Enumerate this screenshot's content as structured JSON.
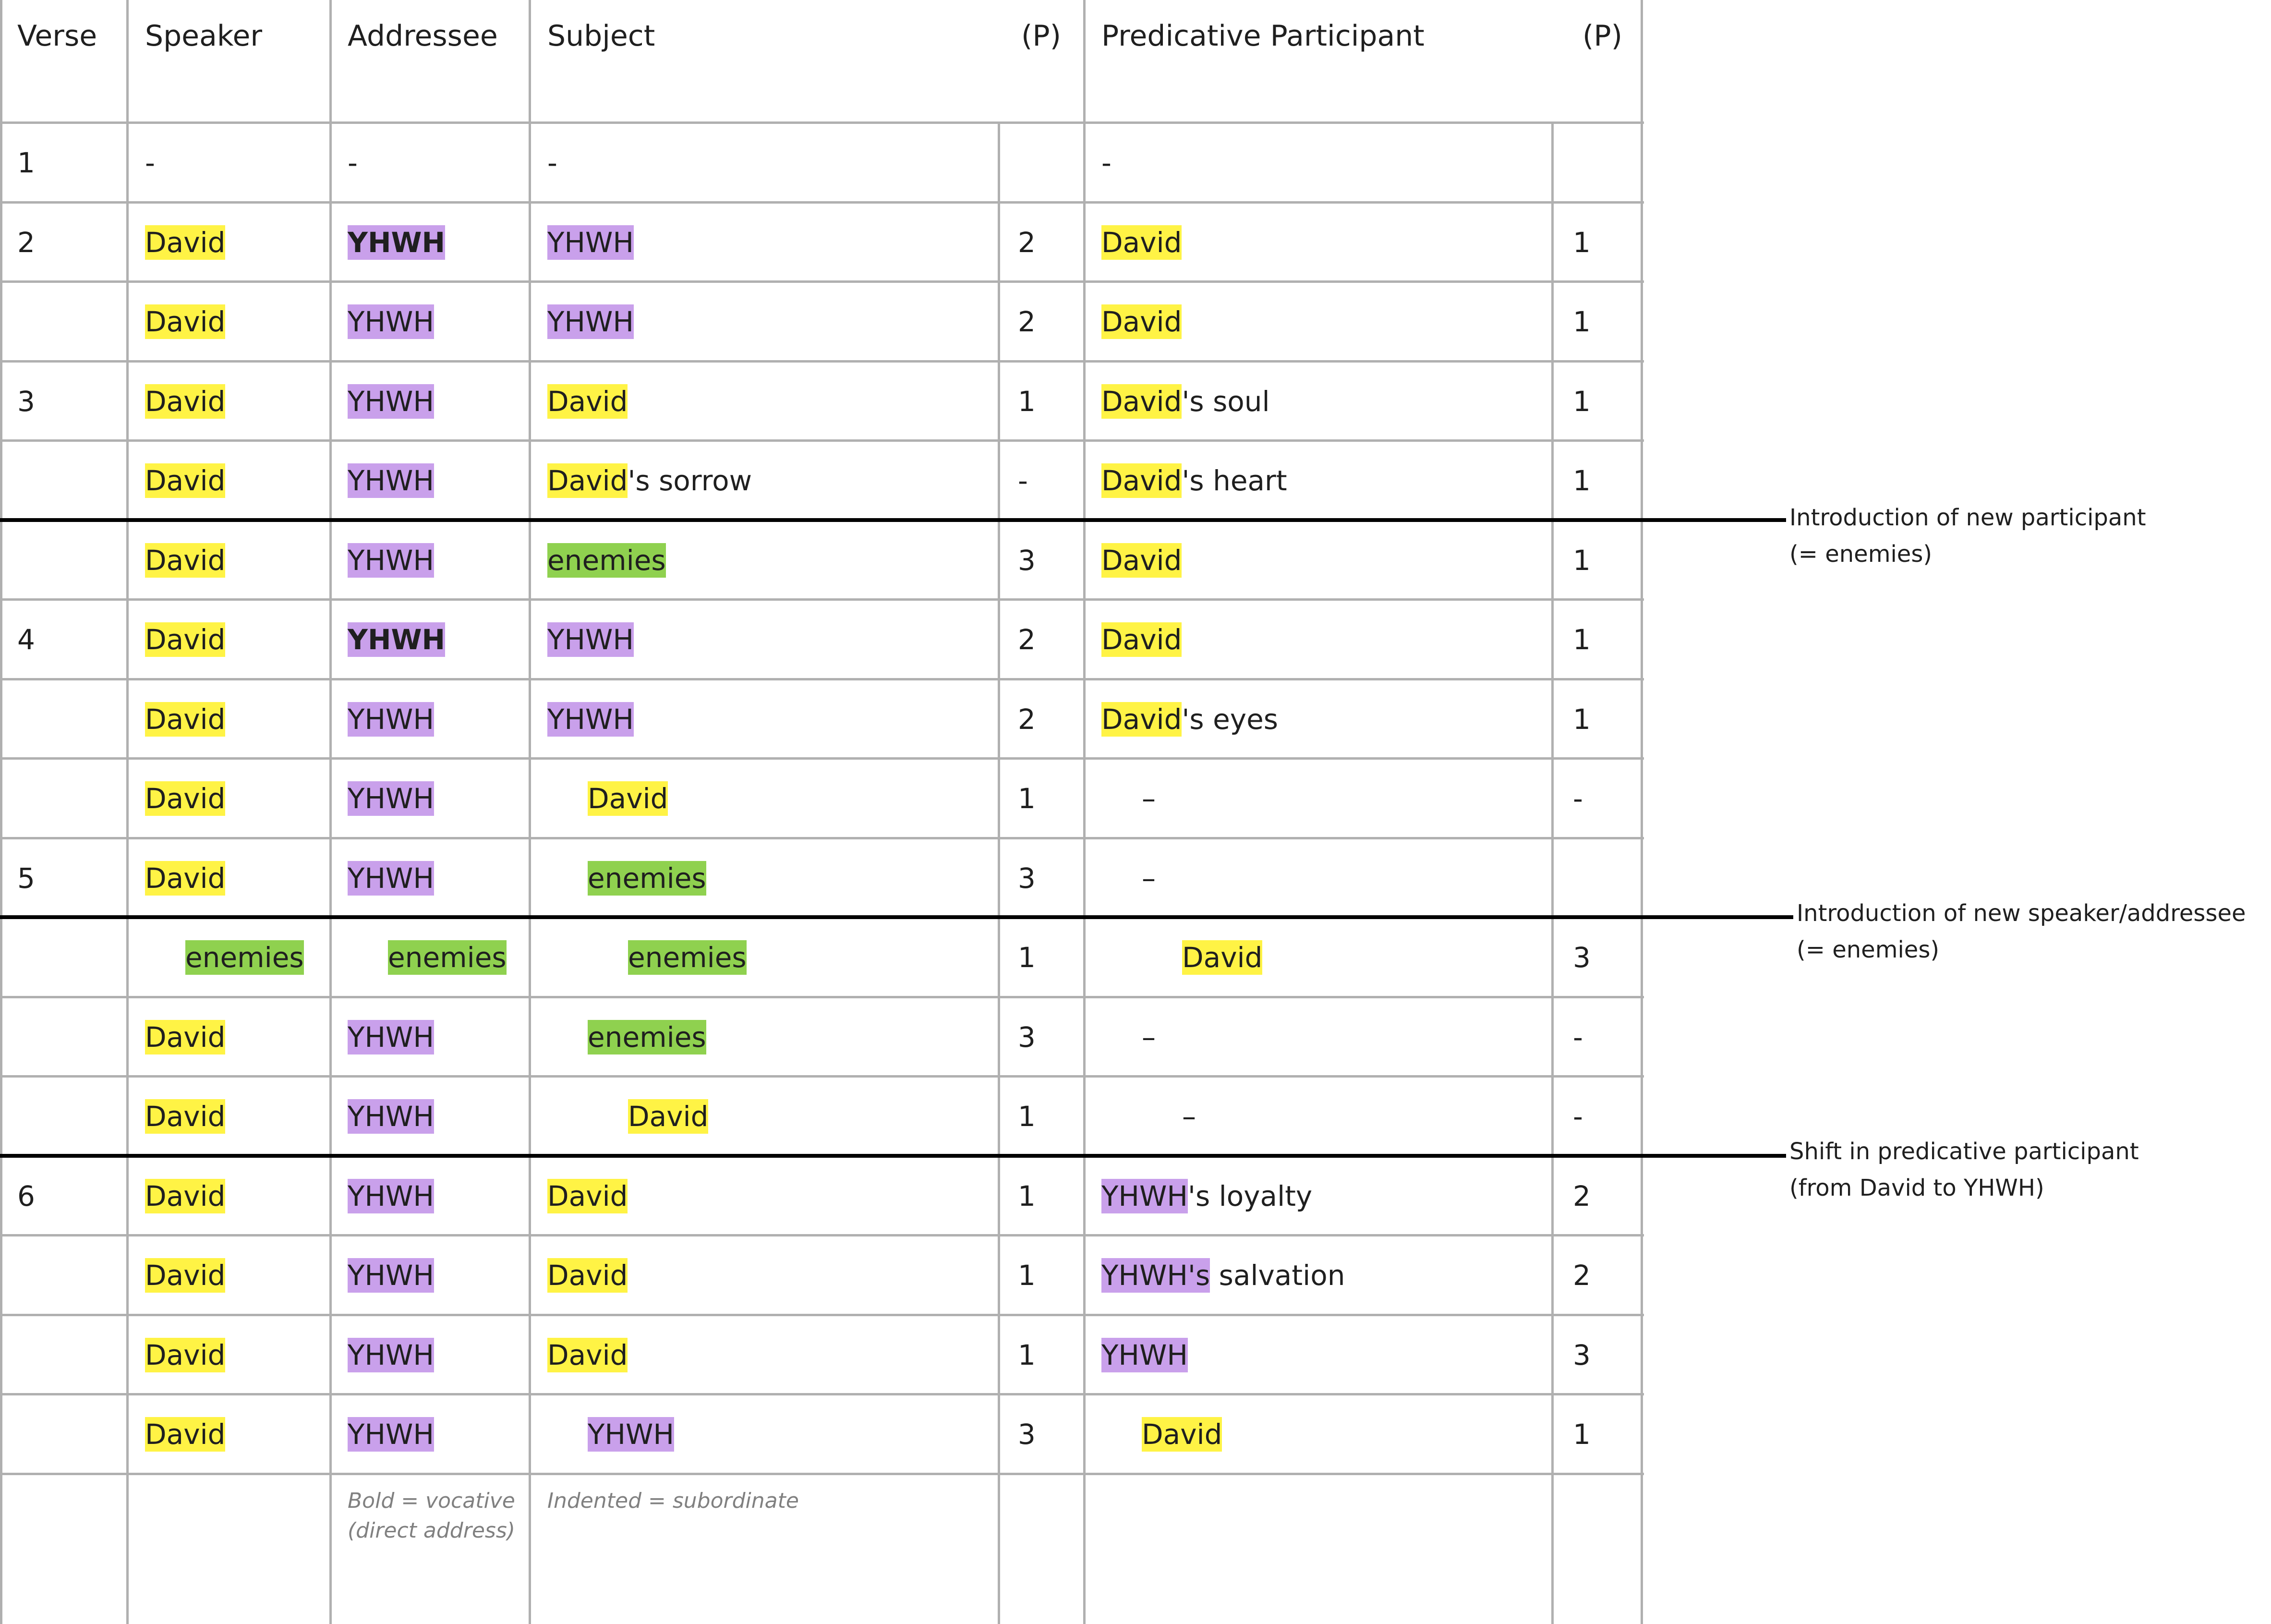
{
  "colors": {
    "david": "#fff345",
    "yhwh": "#c9a0eb",
    "enemies": "#8fd14f",
    "grid": "#b0b0b0",
    "separator": "#000000",
    "note_text": "#808080"
  },
  "headers": {
    "verse": "Verse",
    "speaker": "Speaker",
    "addressee": "Addressee",
    "subject": "Subject",
    "subject_p": "(P)",
    "predicative": "Predicative Participant",
    "predicative_p": "(P)"
  },
  "rows": [
    {
      "verse": "1",
      "speaker": {
        "text": "-"
      },
      "addressee": {
        "text": "-"
      },
      "subject": {
        "text": "-"
      },
      "subject_p": "",
      "pred": {
        "text": "-"
      },
      "pred_p": ""
    },
    {
      "verse": "2",
      "speaker": {
        "text": "David",
        "hl": "david"
      },
      "addressee": {
        "text": "YHWH",
        "hl": "yhwh",
        "bold": true
      },
      "subject": {
        "text": "YHWH",
        "hl": "yhwh"
      },
      "subject_p": "2",
      "pred": {
        "text": "David",
        "hl": "david"
      },
      "pred_p": "1"
    },
    {
      "verse": "",
      "speaker": {
        "text": "David",
        "hl": "david"
      },
      "addressee": {
        "text": "YHWH",
        "hl": "yhwh"
      },
      "subject": {
        "text": "YHWH",
        "hl": "yhwh"
      },
      "subject_p": "2",
      "pred": {
        "text": "David",
        "hl": "david"
      },
      "pred_p": "1"
    },
    {
      "verse": "3",
      "speaker": {
        "text": "David",
        "hl": "david"
      },
      "addressee": {
        "text": "YHWH",
        "hl": "yhwh"
      },
      "subject": {
        "text": "David",
        "hl": "david"
      },
      "subject_p": "1",
      "pred": {
        "text": "David",
        "hl": "david",
        "rest": "'s soul"
      },
      "pred_p": "1"
    },
    {
      "verse": "",
      "speaker": {
        "text": "David",
        "hl": "david"
      },
      "addressee": {
        "text": "YHWH",
        "hl": "yhwh"
      },
      "subject": {
        "text": "David",
        "hl": "david",
        "rest": "'s sorrow"
      },
      "subject_p": "-",
      "pred": {
        "text": "David",
        "hl": "david",
        "rest": "'s heart"
      },
      "pred_p": "1"
    },
    {
      "verse": "",
      "speaker": {
        "text": "David",
        "hl": "david"
      },
      "addressee": {
        "text": "YHWH",
        "hl": "yhwh"
      },
      "subject": {
        "text": "enemies",
        "hl": "enemies"
      },
      "subject_p": "3",
      "pred": {
        "text": "David",
        "hl": "david"
      },
      "pred_p": "1"
    },
    {
      "verse": "4",
      "speaker": {
        "text": "David",
        "hl": "david"
      },
      "addressee": {
        "text": "YHWH",
        "hl": "yhwh",
        "bold": true
      },
      "subject": {
        "text": "YHWH",
        "hl": "yhwh"
      },
      "subject_p": "2",
      "pred": {
        "text": "David",
        "hl": "david"
      },
      "pred_p": "1"
    },
    {
      "verse": "",
      "speaker": {
        "text": "David",
        "hl": "david"
      },
      "addressee": {
        "text": "YHWH",
        "hl": "yhwh"
      },
      "subject": {
        "text": "YHWH",
        "hl": "yhwh"
      },
      "subject_p": "2",
      "pred": {
        "text": "David",
        "hl": "david",
        "rest": "'s eyes"
      },
      "pred_p": "1"
    },
    {
      "verse": "",
      "speaker": {
        "text": "David",
        "hl": "david"
      },
      "addressee": {
        "text": "YHWH",
        "hl": "yhwh"
      },
      "subject": {
        "text": "David",
        "hl": "david",
        "indent": 1
      },
      "subject_p": "1",
      "pred": {
        "text": "–",
        "indent": 1
      },
      "pred_p": "-"
    },
    {
      "verse": "5",
      "speaker": {
        "text": "David",
        "hl": "david"
      },
      "addressee": {
        "text": "YHWH",
        "hl": "yhwh"
      },
      "subject": {
        "text": "enemies",
        "hl": "enemies",
        "indent": 1
      },
      "subject_p": "3",
      "pred": {
        "text": "–",
        "indent": 1
      },
      "pred_p": ""
    },
    {
      "verse": "",
      "speaker": {
        "text": "enemies",
        "hl": "enemies",
        "indent": 1
      },
      "addressee": {
        "text": "enemies",
        "hl": "enemies",
        "indent": 1
      },
      "subject": {
        "text": "enemies",
        "hl": "enemies",
        "indent": 2
      },
      "subject_p": "1",
      "pred": {
        "text": "David",
        "hl": "david",
        "indent": 2
      },
      "pred_p": "3"
    },
    {
      "verse": "",
      "speaker": {
        "text": "David",
        "hl": "david"
      },
      "addressee": {
        "text": "YHWH",
        "hl": "yhwh"
      },
      "subject": {
        "text": "enemies",
        "hl": "enemies",
        "indent": 1
      },
      "subject_p": "3",
      "pred": {
        "text": "–",
        "indent": 1
      },
      "pred_p": "-"
    },
    {
      "verse": "",
      "speaker": {
        "text": "David",
        "hl": "david"
      },
      "addressee": {
        "text": "YHWH",
        "hl": "yhwh"
      },
      "subject": {
        "text": "David",
        "hl": "david",
        "indent": 2
      },
      "subject_p": "1",
      "pred": {
        "text": "–",
        "indent": 2
      },
      "pred_p": "-"
    },
    {
      "verse": "6",
      "speaker": {
        "text": "David",
        "hl": "david"
      },
      "addressee": {
        "text": "YHWH",
        "hl": "yhwh"
      },
      "subject": {
        "text": "David",
        "hl": "david"
      },
      "subject_p": "1",
      "pred": {
        "text": "YHWH",
        "hl": "yhwh",
        "rest": "'s loyalty"
      },
      "pred_p": "2"
    },
    {
      "verse": "",
      "speaker": {
        "text": "David",
        "hl": "david"
      },
      "addressee": {
        "text": "YHWH",
        "hl": "yhwh"
      },
      "subject": {
        "text": "David",
        "hl": "david"
      },
      "subject_p": "1",
      "pred": {
        "text": "YHWH's",
        "hl": "yhwh",
        "rest": " salvation"
      },
      "pred_p": "2"
    },
    {
      "verse": "",
      "speaker": {
        "text": "David",
        "hl": "david"
      },
      "addressee": {
        "text": "YHWH",
        "hl": "yhwh"
      },
      "subject": {
        "text": "David",
        "hl": "david"
      },
      "subject_p": "1",
      "pred": {
        "text": "YHWH",
        "hl": "yhwh"
      },
      "pred_p": "3"
    },
    {
      "verse": "",
      "speaker": {
        "text": "David",
        "hl": "david"
      },
      "addressee": {
        "text": "YHWH",
        "hl": "yhwh"
      },
      "subject": {
        "text": "YHWH",
        "hl": "yhwh",
        "indent": 1
      },
      "subject_p": "3",
      "pred": {
        "text": "David",
        "hl": "david",
        "indent": 1
      },
      "pred_p": "1"
    }
  ],
  "notes": {
    "addressee_line1": "Bold = vocative",
    "addressee_line2": "(direct address)",
    "subject": "Indented = subordinate"
  },
  "annotations": [
    {
      "line1": "Introduction of new participant",
      "line2": "(= enemies)"
    },
    {
      "line1": "Introduction of new speaker/addressee",
      "line2": "(= enemies)"
    },
    {
      "line1": "Shift in predicative participant",
      "line2": "(from David to YHWH)"
    }
  ]
}
